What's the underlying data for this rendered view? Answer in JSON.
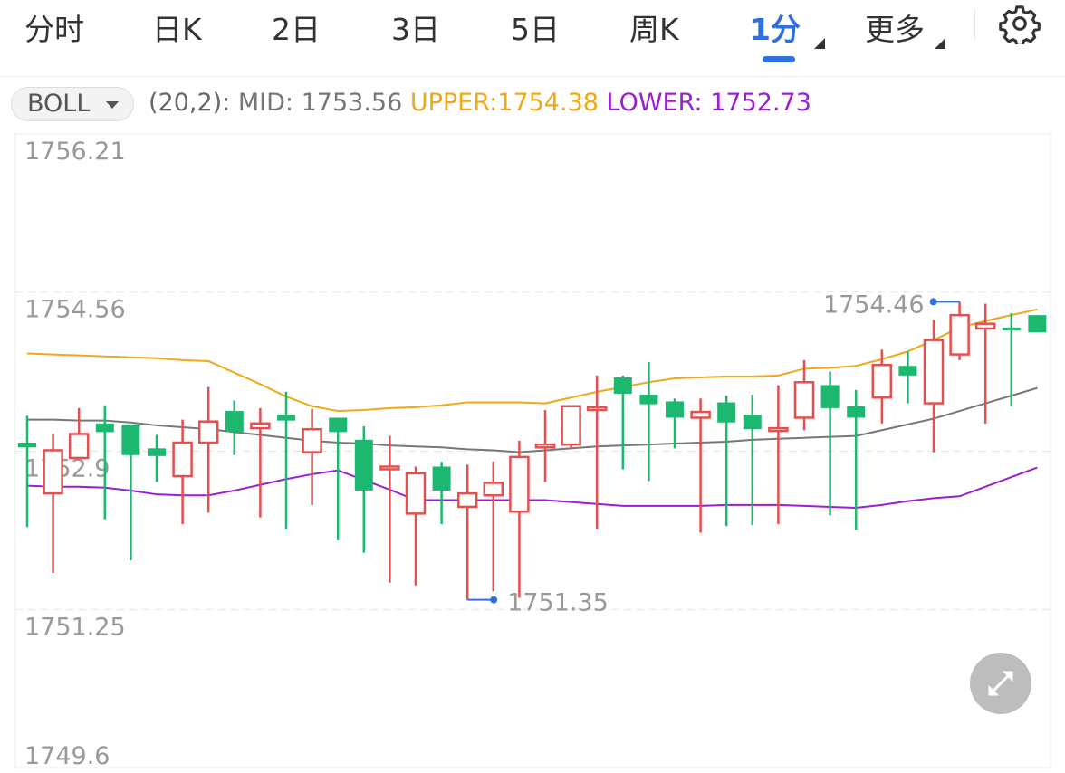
{
  "tabs": [
    {
      "label": "分时"
    },
    {
      "label": "日K"
    },
    {
      "label": "2日"
    },
    {
      "label": "3日"
    },
    {
      "label": "5日"
    },
    {
      "label": "周K"
    },
    {
      "label": "1分",
      "active": true
    },
    {
      "label": "更多"
    }
  ],
  "settings_icon": "gear-icon",
  "indicator": {
    "selector": "BOLL",
    "params": "(20,2):",
    "mid_text": "MID: 1753.56",
    "upper_text": "UPPER:1754.38",
    "lower_text": "LOWER: 1752.73"
  },
  "expand_icon": "expand-arrows-icon",
  "colors": {
    "up": "#e25050",
    "down": "#1db870",
    "upper": "#f0a818",
    "mid": "#777777",
    "lower": "#9b1fd1",
    "accent": "#2f6fe0"
  },
  "chart_data": {
    "type": "candlestick",
    "interval": "1分",
    "ylim": [
      1749.6,
      1756.21
    ],
    "yticks": [
      "1756.21",
      "1754.56",
      "1752.9",
      "1751.25",
      "1749.6"
    ],
    "grid": true,
    "annotations": {
      "high": "1754.46",
      "low": "1751.35"
    },
    "candles": [
      [
        1752.99,
        1753.27,
        1752.11,
        1752.94
      ],
      [
        1752.46,
        1753.08,
        1751.63,
        1752.91
      ],
      [
        1752.83,
        1753.35,
        1752.82,
        1753.08
      ],
      [
        1753.19,
        1753.38,
        1752.19,
        1753.1
      ],
      [
        1753.18,
        1753.18,
        1751.76,
        1752.86
      ],
      [
        1752.93,
        1753.07,
        1752.58,
        1752.85
      ],
      [
        1752.64,
        1753.23,
        1752.14,
        1752.99
      ],
      [
        1752.99,
        1753.57,
        1752.26,
        1753.21
      ],
      [
        1753.32,
        1753.43,
        1752.86,
        1753.1
      ],
      [
        1753.14,
        1753.35,
        1752.21,
        1753.19
      ],
      [
        1753.28,
        1753.52,
        1752.09,
        1753.22
      ],
      [
        1752.89,
        1753.34,
        1752.34,
        1753.13
      ],
      [
        1753.25,
        1753.25,
        1751.97,
        1753.1
      ],
      [
        1753.02,
        1753.16,
        1751.84,
        1752.49
      ],
      [
        1752.72,
        1753.06,
        1751.53,
        1752.74
      ],
      [
        1752.25,
        1752.74,
        1751.5,
        1752.67
      ],
      [
        1752.74,
        1752.79,
        1752.14,
        1752.49
      ],
      [
        1752.32,
        1752.76,
        1751.35,
        1752.46
      ],
      [
        1752.44,
        1752.79,
        1751.44,
        1752.57
      ],
      [
        1752.27,
        1753.01,
        1751.37,
        1752.84
      ],
      [
        1752.94,
        1753.33,
        1752.58,
        1752.97
      ],
      [
        1752.97,
        1753.37,
        1752.93,
        1753.37
      ],
      [
        1753.33,
        1753.69,
        1752.09,
        1753.36
      ],
      [
        1753.67,
        1753.69,
        1752.71,
        1753.5
      ],
      [
        1753.49,
        1753.83,
        1752.59,
        1753.39
      ],
      [
        1753.42,
        1753.45,
        1752.93,
        1753.25
      ],
      [
        1753.25,
        1753.45,
        1752.05,
        1753.31
      ],
      [
        1753.41,
        1753.48,
        1752.12,
        1753.2
      ],
      [
        1753.28,
        1753.49,
        1752.13,
        1753.13
      ],
      [
        1753.12,
        1753.59,
        1752.14,
        1753.14
      ],
      [
        1753.25,
        1753.85,
        1753.12,
        1753.62
      ],
      [
        1753.59,
        1753.73,
        1752.23,
        1753.35
      ],
      [
        1753.37,
        1753.54,
        1752.08,
        1753.25
      ],
      [
        1753.46,
        1753.96,
        1753.19,
        1753.8
      ],
      [
        1753.79,
        1753.94,
        1753.4,
        1753.69
      ],
      [
        1753.4,
        1754.27,
        1752.89,
        1754.06
      ],
      [
        1753.91,
        1754.46,
        1753.85,
        1754.32
      ],
      [
        1754.18,
        1754.44,
        1753.19,
        1754.23
      ],
      [
        1754.19,
        1754.34,
        1753.37,
        1754.18
      ],
      [
        1754.32,
        1754.32,
        1754.14,
        1754.14
      ]
    ],
    "candle_fields": [
      "open",
      "high",
      "low",
      "close"
    ],
    "series": [
      {
        "name": "UPPER",
        "values": [
          1753.92,
          1753.91,
          1753.9,
          1753.89,
          1753.88,
          1753.87,
          1753.85,
          1753.84,
          1753.72,
          1753.6,
          1753.47,
          1753.37,
          1753.32,
          1753.33,
          1753.35,
          1753.36,
          1753.38,
          1753.41,
          1753.41,
          1753.41,
          1753.4,
          1753.46,
          1753.52,
          1753.57,
          1753.62,
          1753.66,
          1753.67,
          1753.68,
          1753.68,
          1753.69,
          1753.76,
          1753.77,
          1753.79,
          1753.86,
          1753.94,
          1754.06,
          1754.19,
          1754.26,
          1754.32,
          1754.38
        ]
      },
      {
        "name": "MID",
        "values": [
          1753.23,
          1753.23,
          1753.22,
          1753.22,
          1753.2,
          1753.17,
          1753.15,
          1753.13,
          1753.1,
          1753.07,
          1753.04,
          1753.01,
          1752.99,
          1752.98,
          1752.96,
          1752.95,
          1752.94,
          1752.92,
          1752.91,
          1752.89,
          1752.91,
          1752.93,
          1752.95,
          1752.96,
          1752.97,
          1752.98,
          1752.99,
          1753.0,
          1753.02,
          1753.03,
          1753.04,
          1753.05,
          1753.06,
          1753.12,
          1753.18,
          1753.24,
          1753.32,
          1753.4,
          1753.48,
          1753.56
        ]
      },
      {
        "name": "LOWER",
        "values": [
          1752.54,
          1752.53,
          1752.53,
          1752.52,
          1752.49,
          1752.45,
          1752.44,
          1752.44,
          1752.49,
          1752.55,
          1752.61,
          1752.66,
          1752.7,
          1752.6,
          1752.5,
          1752.39,
          1752.39,
          1752.39,
          1752.39,
          1752.39,
          1752.39,
          1752.37,
          1752.35,
          1752.33,
          1752.33,
          1752.33,
          1752.33,
          1752.34,
          1752.34,
          1752.34,
          1752.33,
          1752.32,
          1752.31,
          1752.34,
          1752.38,
          1752.41,
          1752.43,
          1752.53,
          1752.63,
          1752.73
        ]
      }
    ]
  }
}
